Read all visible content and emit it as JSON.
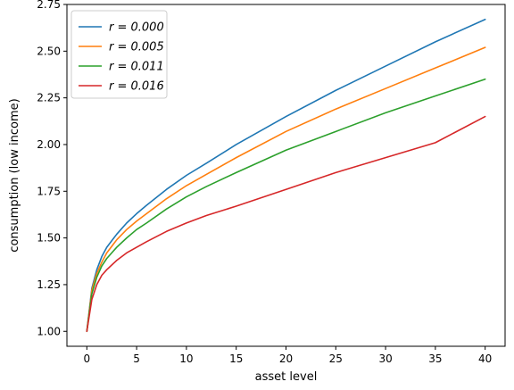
{
  "chart_data": {
    "type": "line",
    "xlabel": "asset level",
    "ylabel": "consumption (low income)",
    "xlim": [
      -2,
      42
    ],
    "ylim": [
      0.92,
      2.75
    ],
    "xticks": [
      0,
      5,
      10,
      15,
      20,
      25,
      30,
      35,
      40
    ],
    "yticks": [
      1.0,
      1.25,
      1.5,
      1.75,
      2.0,
      2.25,
      2.5,
      2.75
    ],
    "ytick_labels": [
      "1.00",
      "1.25",
      "1.50",
      "1.75",
      "2.00",
      "2.25",
      "2.50",
      "2.75"
    ],
    "grid": false,
    "legend": "top-left",
    "x": [
      0,
      0.5,
      1,
      1.5,
      2,
      3,
      4,
      5,
      6,
      8,
      10,
      12,
      15,
      20,
      25,
      30,
      35,
      40
    ],
    "series": [
      {
        "name": "r = 0.000",
        "color": "#1f77b4",
        "values": [
          1.0,
          1.23,
          1.33,
          1.4,
          1.45,
          1.52,
          1.58,
          1.63,
          1.675,
          1.76,
          1.835,
          1.9,
          2.0,
          2.15,
          2.29,
          2.42,
          2.55,
          2.67
        ]
      },
      {
        "name": "r = 0.005",
        "color": "#ff7f0e",
        "values": [
          1.0,
          1.22,
          1.31,
          1.37,
          1.42,
          1.49,
          1.545,
          1.59,
          1.63,
          1.71,
          1.78,
          1.84,
          1.93,
          2.07,
          2.19,
          2.3,
          2.41,
          2.52
        ]
      },
      {
        "name": "r = 0.011",
        "color": "#2ca02c",
        "values": [
          1.0,
          1.2,
          1.29,
          1.35,
          1.39,
          1.45,
          1.5,
          1.545,
          1.58,
          1.655,
          1.72,
          1.775,
          1.85,
          1.97,
          2.07,
          2.17,
          2.26,
          2.35
        ]
      },
      {
        "name": "r = 0.016",
        "color": "#d62728",
        "values": [
          1.0,
          1.17,
          1.25,
          1.3,
          1.33,
          1.38,
          1.42,
          1.45,
          1.48,
          1.535,
          1.58,
          1.62,
          1.67,
          1.76,
          1.85,
          1.93,
          2.01,
          2.15
        ]
      }
    ]
  }
}
